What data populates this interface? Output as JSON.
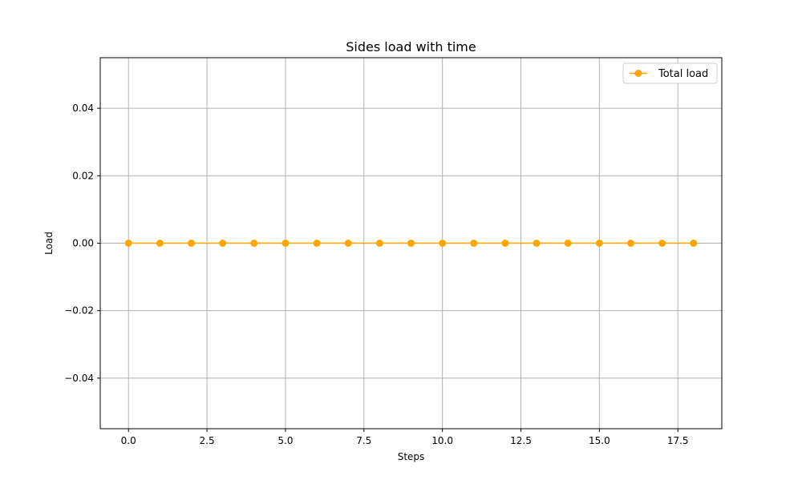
{
  "chart_data": {
    "type": "line",
    "title": "Sides load with time",
    "xlabel": "Steps",
    "ylabel": "Load",
    "xlim": [
      -0.9,
      18.9
    ],
    "ylim": [
      -0.055,
      0.055
    ],
    "x_ticks": [
      0.0,
      2.5,
      5.0,
      7.5,
      10.0,
      12.5,
      15.0,
      17.5
    ],
    "x_tick_labels": [
      "0.0",
      "2.5",
      "5.0",
      "7.5",
      "10.0",
      "12.5",
      "15.0",
      "17.5"
    ],
    "y_ticks": [
      -0.04,
      -0.02,
      0.0,
      0.02,
      0.04
    ],
    "y_tick_labels": [
      "−0.04",
      "−0.02",
      "0.00",
      "0.02",
      "0.04"
    ],
    "grid": true,
    "legend_position": "top-right",
    "series": [
      {
        "name": "Total load",
        "color": "#ffa500",
        "marker": "circle",
        "x": [
          0,
          1,
          2,
          3,
          4,
          5,
          6,
          7,
          8,
          9,
          10,
          11,
          12,
          13,
          14,
          15,
          16,
          17,
          18
        ],
        "y": [
          0,
          0,
          0,
          0,
          0,
          0,
          0,
          0,
          0,
          0,
          0,
          0,
          0,
          0,
          0,
          0,
          0,
          0,
          0
        ]
      }
    ]
  }
}
